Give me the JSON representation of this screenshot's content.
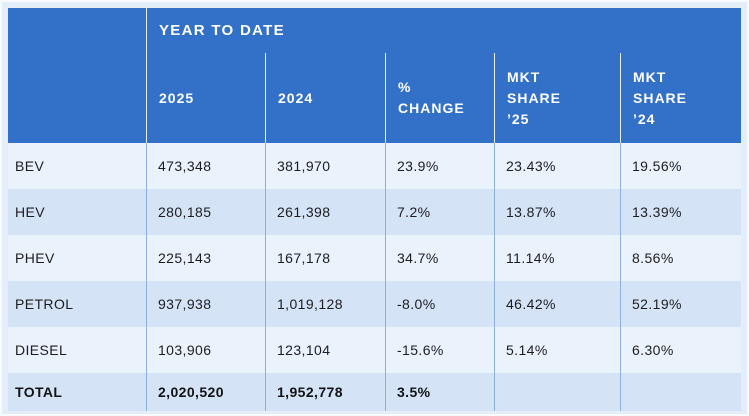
{
  "table": {
    "group_header": "YEAR TO DATE",
    "column_headers": [
      {
        "label": "2025"
      },
      {
        "label": "2024"
      },
      {
        "label": "%\nCHANGE"
      },
      {
        "label": "MKT\nSHARE\n’25"
      },
      {
        "label": "MKT\nSHARE\n’24"
      }
    ],
    "rows": [
      {
        "label": "BEV",
        "y2025": "473,348",
        "y2024": "381,970",
        "pct_change": "23.9%",
        "mkt_share_25": "23.43%",
        "mkt_share_24": "19.56%"
      },
      {
        "label": "HEV",
        "y2025": "280,185",
        "y2024": "261,398",
        "pct_change": "7.2%",
        "mkt_share_25": "13.87%",
        "mkt_share_24": "13.39%"
      },
      {
        "label": "PHEV",
        "y2025": "225,143",
        "y2024": "167,178",
        "pct_change": "34.7%",
        "mkt_share_25": "11.14%",
        "mkt_share_24": "8.56%"
      },
      {
        "label": "PETROL",
        "y2025": "937,938",
        "y2024": "1,019,128",
        "pct_change": "-8.0%",
        "mkt_share_25": "46.42%",
        "mkt_share_24": "52.19%"
      },
      {
        "label": "DIESEL",
        "y2025": "103,906",
        "y2024": "123,104",
        "pct_change": "-15.6%",
        "mkt_share_25": "5.14%",
        "mkt_share_24": "6.30%"
      },
      {
        "label": "TOTAL",
        "y2025": "2,020,520",
        "y2024": "1,952,778",
        "pct_change": "3.5%",
        "mkt_share_25": "",
        "mkt_share_24": ""
      }
    ]
  },
  "chart_data": {
    "type": "table",
    "title": "YEAR TO DATE",
    "columns": [
      "2025",
      "2024",
      "% CHANGE",
      "MKT SHARE '25",
      "MKT SHARE '24"
    ],
    "rows": [
      {
        "category": "BEV",
        "2025": 473348,
        "2024": 381970,
        "pct_change": 23.9,
        "mkt_share_25": 23.43,
        "mkt_share_24": 19.56
      },
      {
        "category": "HEV",
        "2025": 280185,
        "2024": 261398,
        "pct_change": 7.2,
        "mkt_share_25": 13.87,
        "mkt_share_24": 13.39
      },
      {
        "category": "PHEV",
        "2025": 225143,
        "2024": 167178,
        "pct_change": 34.7,
        "mkt_share_25": 11.14,
        "mkt_share_24": 8.56
      },
      {
        "category": "PETROL",
        "2025": 937938,
        "2024": 1019128,
        "pct_change": -8.0,
        "mkt_share_25": 46.42,
        "mkt_share_24": 52.19
      },
      {
        "category": "DIESEL",
        "2025": 103906,
        "2024": 123104,
        "pct_change": -15.6,
        "mkt_share_25": 5.14,
        "mkt_share_24": 6.3
      },
      {
        "category": "TOTAL",
        "2025": 2020520,
        "2024": 1952778,
        "pct_change": 3.5,
        "mkt_share_25": null,
        "mkt_share_24": null
      }
    ]
  },
  "colors": {
    "header_bg": "#3371c9",
    "header_divider": "#e9eef6",
    "row_light": "#eaf2fc",
    "row_shaded": "#d5e3f7",
    "grid_line": "#8cb0dc",
    "page_bg": "#e4eef9",
    "text": "#1d1d1f"
  }
}
